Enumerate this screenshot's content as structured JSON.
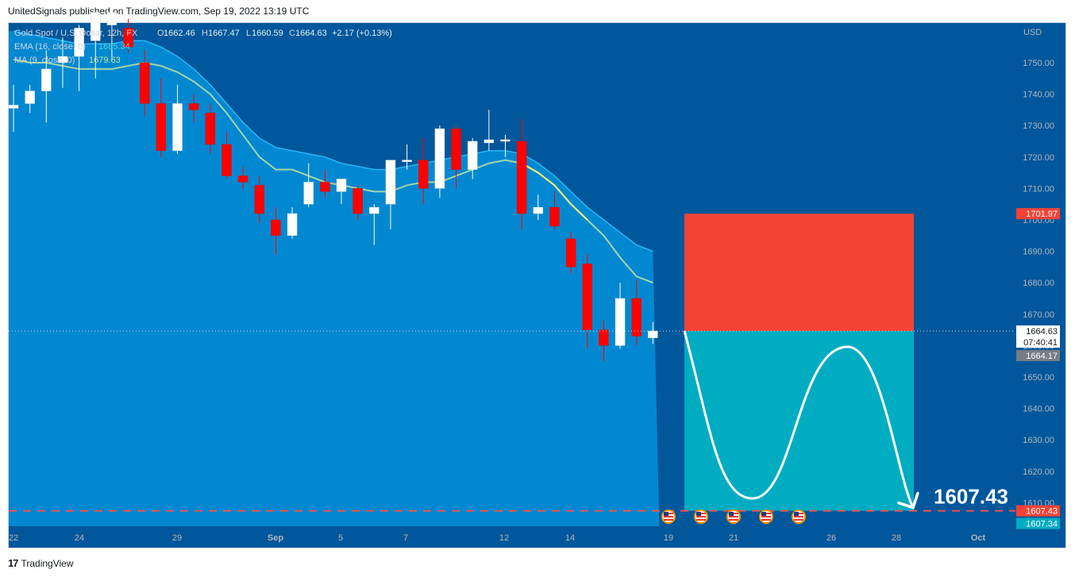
{
  "header": {
    "text": "UnitedSignals published on TradingView.com, Sep 19, 2022 13:19 UTC"
  },
  "footer": {
    "brand": "TradingView"
  },
  "legend": {
    "symbol": "Gold Spot / U.S. Dollar, 12h, FX",
    "o_label": "O",
    "o": "1662.46",
    "h_label": "H",
    "h": "1667.47",
    "l_label": "L",
    "l": "1660.59",
    "c_label": "C",
    "c": "1664.63",
    "change": "+2.17 (+0.13%)",
    "ema_label": "EMA (16, close, 0)",
    "ema_value": "1685.34",
    "ma_label": "MA (9, close, 0)",
    "ma_value": "1679.63"
  },
  "colors": {
    "background": "#01579b",
    "up": "#ffffff",
    "down": "#ff0000",
    "ema_band": "#0288d1",
    "ma_line": "#a5d6a7",
    "stop_zone": "#f44336",
    "target_zone": "#00acc1",
    "axis_text": "#b2b5be"
  },
  "chart_data": {
    "type": "candlestick",
    "currency": "USD",
    "y_ticks": [
      "1750.00",
      "1740.00",
      "1730.00",
      "1720.00",
      "1710.00",
      "1700.00",
      "1690.00",
      "1680.00",
      "1670.00",
      "1660.00",
      "1650.00",
      "1640.00",
      "1630.00",
      "1620.00",
      "1610.00"
    ],
    "x_ticks": [
      "22",
      "24",
      "29",
      "Sep",
      "5",
      "7",
      "12",
      "14",
      "19",
      "21",
      "26",
      "28",
      "Oct"
    ],
    "ylim": [
      1601,
      1761
    ],
    "candles": [
      {
        "o": 1735.5,
        "h": 1743,
        "l": 1728,
        "c": 1736.5
      },
      {
        "o": 1737,
        "h": 1743,
        "l": 1734,
        "c": 1741
      },
      {
        "o": 1741,
        "h": 1754,
        "l": 1731,
        "c": 1748
      },
      {
        "o": 1750,
        "h": 1758,
        "l": 1742,
        "c": 1752
      },
      {
        "o": 1752,
        "h": 1762,
        "l": 1741,
        "c": 1761
      },
      {
        "o": 1757,
        "h": 1766,
        "l": 1745,
        "c": 1766
      },
      {
        "o": 1762,
        "h": 1768,
        "l": 1751,
        "c": 1766
      },
      {
        "o": 1761,
        "h": 1764,
        "l": 1753,
        "c": 1755
      },
      {
        "o": 1750,
        "h": 1754,
        "l": 1733,
        "c": 1737
      },
      {
        "o": 1737,
        "h": 1745,
        "l": 1720,
        "c": 1722
      },
      {
        "o": 1722,
        "h": 1743,
        "l": 1721,
        "c": 1737
      },
      {
        "o": 1737,
        "h": 1740,
        "l": 1731,
        "c": 1735
      },
      {
        "o": 1734,
        "h": 1737,
        "l": 1721,
        "c": 1724
      },
      {
        "o": 1724,
        "h": 1728,
        "l": 1713,
        "c": 1714
      },
      {
        "o": 1714,
        "h": 1717,
        "l": 1710,
        "c": 1712
      },
      {
        "o": 1711,
        "h": 1714,
        "l": 1699,
        "c": 1702
      },
      {
        "o": 1700,
        "h": 1704,
        "l": 1689,
        "c": 1695
      },
      {
        "o": 1695,
        "h": 1704,
        "l": 1694,
        "c": 1702
      },
      {
        "o": 1705,
        "h": 1718,
        "l": 1704,
        "c": 1712
      },
      {
        "o": 1712,
        "h": 1716,
        "l": 1707,
        "c": 1709
      },
      {
        "o": 1709,
        "h": 1713,
        "l": 1705,
        "c": 1713
      },
      {
        "o": 1710,
        "h": 1711,
        "l": 1700,
        "c": 1702
      },
      {
        "o": 1702,
        "h": 1705,
        "l": 1692,
        "c": 1704
      },
      {
        "o": 1705,
        "h": 1719,
        "l": 1697,
        "c": 1719
      },
      {
        "o": 1719,
        "h": 1724,
        "l": 1716,
        "c": 1719
      },
      {
        "o": 1719,
        "h": 1726,
        "l": 1705,
        "c": 1710
      },
      {
        "o": 1710,
        "h": 1730,
        "l": 1707,
        "c": 1729
      },
      {
        "o": 1729,
        "h": 1730,
        "l": 1710,
        "c": 1716
      },
      {
        "o": 1716,
        "h": 1726,
        "l": 1713,
        "c": 1725
      },
      {
        "o": 1724.5,
        "h": 1735,
        "l": 1722,
        "c": 1725.5
      },
      {
        "o": 1725,
        "h": 1727,
        "l": 1720,
        "c": 1725.5
      },
      {
        "o": 1725,
        "h": 1732,
        "l": 1697,
        "c": 1702
      },
      {
        "o": 1702,
        "h": 1708,
        "l": 1700,
        "c": 1704
      },
      {
        "o": 1704,
        "h": 1709,
        "l": 1697,
        "c": 1698
      },
      {
        "o": 1694,
        "h": 1696,
        "l": 1683,
        "c": 1685
      },
      {
        "o": 1686,
        "h": 1689,
        "l": 1659,
        "c": 1665
      },
      {
        "o": 1665,
        "h": 1668,
        "l": 1655,
        "c": 1660
      },
      {
        "o": 1660,
        "h": 1680,
        "l": 1659,
        "c": 1675
      },
      {
        "o": 1675,
        "h": 1681,
        "l": 1660,
        "c": 1663
      },
      {
        "o": 1662.46,
        "h": 1667.47,
        "l": 1660.59,
        "c": 1664.63
      }
    ],
    "ma": [
      1751,
      1750,
      1750,
      1749,
      1748,
      1748,
      1748,
      1749,
      1750,
      1749,
      1747,
      1744,
      1740,
      1734,
      1727,
      1720,
      1716,
      1716,
      1714,
      1712,
      1711,
      1710,
      1709,
      1709,
      1711,
      1712,
      1712,
      1714,
      1716,
      1718,
      1719,
      1718,
      1715,
      1711,
      1705,
      1700,
      1695,
      1688,
      1682,
      1680
    ],
    "ema_upper": [
      1760,
      1759,
      1758,
      1757,
      1756,
      1756,
      1756,
      1757,
      1757,
      1755,
      1752,
      1748,
      1743,
      1737,
      1731,
      1726,
      1723,
      1722,
      1721,
      1720,
      1718,
      1717,
      1716,
      1716,
      1717,
      1718,
      1719,
      1720,
      1721,
      1722,
      1722,
      1721,
      1718,
      1714,
      1709,
      1704,
      1700,
      1696,
      1692,
      1690
    ],
    "position": {
      "entry": 1664.63,
      "entry_time": "07:40:41",
      "bid": 1664.17,
      "stop": 1701.97,
      "target": 1607.43,
      "target_alt": 1607.34
    },
    "target_label": "1607.43"
  }
}
